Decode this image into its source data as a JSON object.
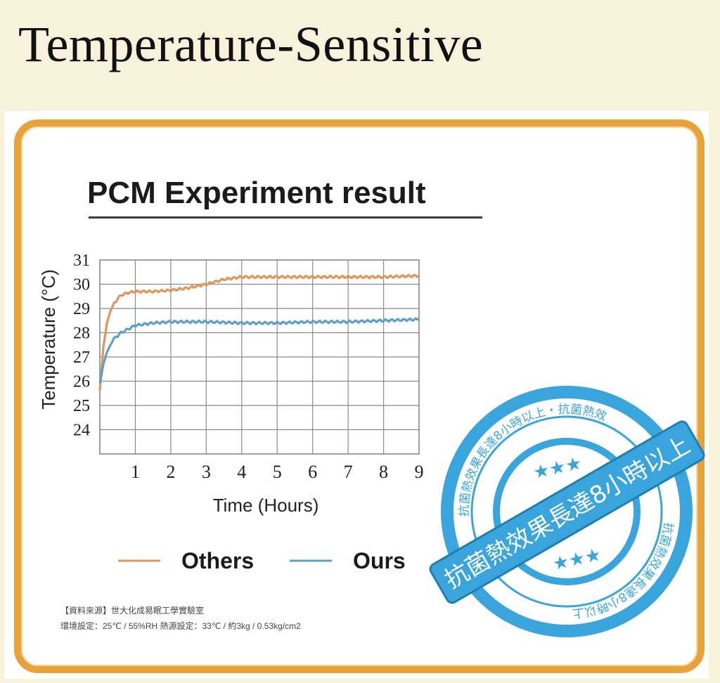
{
  "page": {
    "title": "Temperature-Sensitive"
  },
  "chart_data": {
    "type": "line",
    "title": "PCM Experiment result",
    "xlabel": "Time (Hours)",
    "ylabel": "Temperature (°C)",
    "xlim": [
      0,
      9
    ],
    "ylim": [
      23,
      31
    ],
    "x_ticks": [
      "1",
      "2",
      "3",
      "4",
      "5",
      "6",
      "7",
      "8",
      "9"
    ],
    "y_ticks": [
      "31",
      "30",
      "29",
      "28",
      "27",
      "26",
      "25",
      "24"
    ],
    "grid": true,
    "legend_placement": "bottom",
    "series": [
      {
        "name": "Others",
        "color": "#e0955a",
        "x": [
          0,
          0.1,
          0.2,
          0.3,
          0.4,
          0.5,
          0.6,
          0.8,
          1.0,
          1.5,
          2.0,
          2.5,
          3.0,
          3.5,
          4.0,
          5.0,
          6.0,
          7.0,
          8.0,
          9.0
        ],
        "y": [
          25.6,
          27.4,
          28.4,
          28.9,
          29.2,
          29.4,
          29.55,
          29.65,
          29.7,
          29.7,
          29.75,
          29.85,
          30.0,
          30.2,
          30.3,
          30.3,
          30.3,
          30.3,
          30.3,
          30.35
        ]
      },
      {
        "name": "Ours",
        "color": "#5aa0c8",
        "x": [
          0,
          0.1,
          0.2,
          0.3,
          0.4,
          0.6,
          0.8,
          1.0,
          1.5,
          2.0,
          3.0,
          4.0,
          5.0,
          6.0,
          7.0,
          8.0,
          9.0
        ],
        "y": [
          25.9,
          26.7,
          27.2,
          27.5,
          27.75,
          28.0,
          28.15,
          28.3,
          28.4,
          28.45,
          28.45,
          28.4,
          28.4,
          28.45,
          28.45,
          28.5,
          28.55
        ]
      }
    ]
  },
  "footnote": {
    "line1": "【資料來源】世大化成易眠工學實驗室",
    "line2": "環境設定：25℃ / 55%RH 熱源設定：33℃ / 約3kg / 0.53kg/cm2"
  },
  "stamp": {
    "banner": "抗菌熱效果長達8小時以上",
    "ring_top": "抗菌熱效果長達8小時以上・抗菌熱效",
    "ring_bottom": "抗菌熱效果長達8小時以上",
    "stars": "★★★",
    "color": "#3aa5dc"
  }
}
